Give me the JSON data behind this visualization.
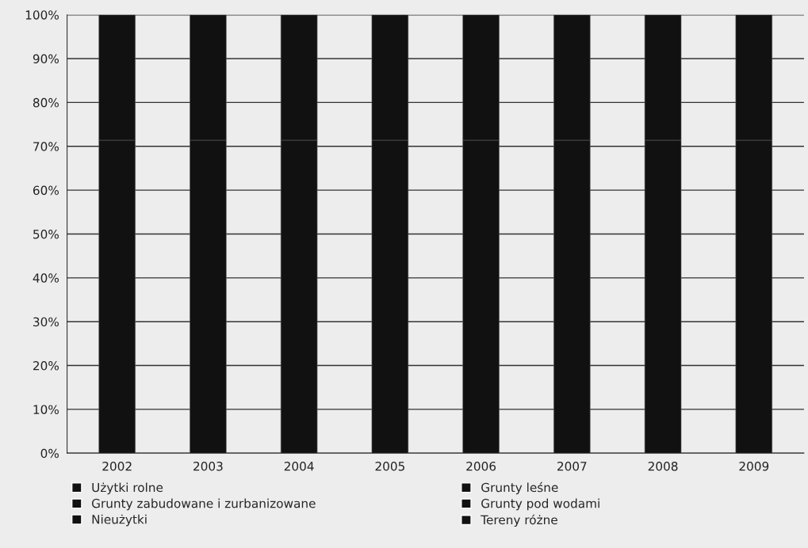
{
  "chart_data": {
    "type": "bar",
    "stacked": true,
    "categories": [
      "2002",
      "2003",
      "2004",
      "2005",
      "2006",
      "2007",
      "2008",
      "2009"
    ],
    "series": [
      {
        "name": "Użytki rolne",
        "color": "#111111",
        "values": [
          71.4,
          71.4,
          71.4,
          71.4,
          71.4,
          71.4,
          71.4,
          71.4
        ]
      },
      {
        "name": "Grunty leśne",
        "color": "#111111",
        "values": [
          28.6,
          28.6,
          28.6,
          28.6,
          28.6,
          28.6,
          28.6,
          28.6
        ]
      },
      {
        "name": "Grunty zabudowane i zurbanizowane",
        "color": "#111111",
        "values": [
          null,
          null,
          null,
          null,
          null,
          null,
          null,
          null
        ]
      },
      {
        "name": "Grunty pod wodami",
        "color": "#111111",
        "values": [
          null,
          null,
          null,
          null,
          null,
          null,
          null,
          null
        ]
      },
      {
        "name": "Nieużytki",
        "color": "#111111",
        "values": [
          null,
          null,
          null,
          null,
          null,
          null,
          null,
          null
        ]
      },
      {
        "name": "Tereny różne",
        "color": "#111111",
        "values": [
          null,
          null,
          null,
          null,
          null,
          null,
          null,
          null
        ]
      }
    ],
    "ylim": [
      0,
      100
    ],
    "yticks": [
      {
        "value": 0,
        "label": "0%"
      },
      {
        "value": 10,
        "label": "10%"
      },
      {
        "value": 20,
        "label": "20%"
      },
      {
        "value": 30,
        "label": "30%"
      },
      {
        "value": 40,
        "label": "40%"
      },
      {
        "value": 50,
        "label": "50%"
      },
      {
        "value": 60,
        "label": "60%"
      },
      {
        "value": 70,
        "label": "70%"
      },
      {
        "value": 80,
        "label": "80%"
      },
      {
        "value": 90,
        "label": "90%"
      },
      {
        "value": 100,
        "label": "100%"
      }
    ],
    "grid": "y",
    "legend": "bottom"
  }
}
